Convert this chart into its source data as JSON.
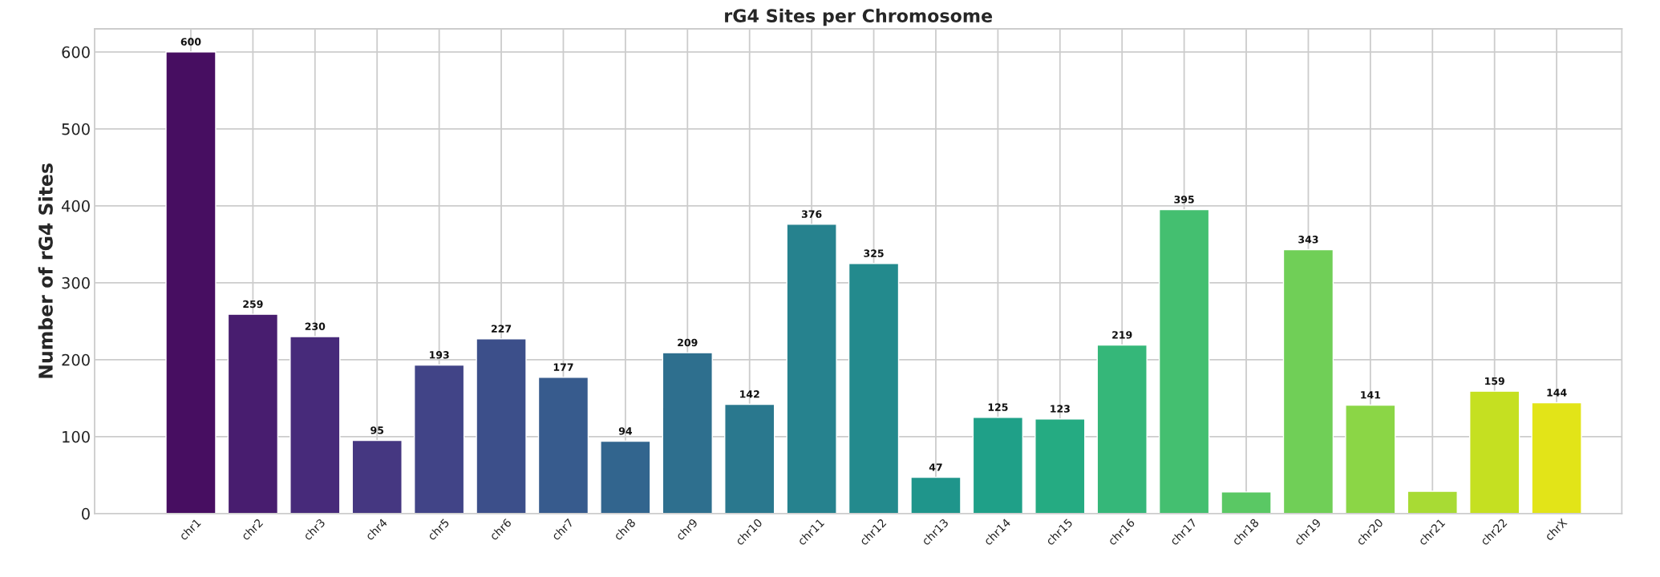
{
  "chart_data": {
    "type": "bar",
    "title": "rG4 Sites per Chromosome",
    "ylabel": "Number of rG4 Sites",
    "categories": [
      "chr1",
      "chr2",
      "chr3",
      "chr4",
      "chr5",
      "chr6",
      "chr7",
      "chr8",
      "chr9",
      "chr10",
      "chr11",
      "chr12",
      "chr13",
      "chr14",
      "chr15",
      "chr16",
      "chr17",
      "chr18",
      "chr19",
      "chr20",
      "chr21",
      "chr22",
      "chrX"
    ],
    "values": [
      600,
      259,
      230,
      95,
      193,
      227,
      177,
      94,
      209,
      142,
      376,
      325,
      47,
      125,
      123,
      219,
      395,
      28,
      343,
      141,
      29,
      159,
      144
    ],
    "value_labels": [
      "600",
      "259",
      "230",
      "95",
      "193",
      "227",
      "177",
      "94",
      "209",
      "142",
      "376",
      "325",
      "47",
      "125",
      "123",
      "219",
      "395",
      null,
      "343",
      "141",
      null,
      "159",
      "144"
    ],
    "colors": [
      "#470e61",
      "#481d6f",
      "#472a7a",
      "#453781",
      "#414487",
      "#3c4f8a",
      "#375b8d",
      "#32658e",
      "#2e6f8e",
      "#2a788e",
      "#26828e",
      "#238a8d",
      "#1f958b",
      "#1fa088",
      "#25ab82",
      "#35b779",
      "#44bf70",
      "#5ac864",
      "#70cf57",
      "#8bd646",
      "#a8db34",
      "#c5e021",
      "#e2e418"
    ],
    "ylim": [
      0,
      630
    ],
    "yticks": [
      0,
      100,
      200,
      300,
      400,
      500,
      600
    ],
    "grid": true
  }
}
